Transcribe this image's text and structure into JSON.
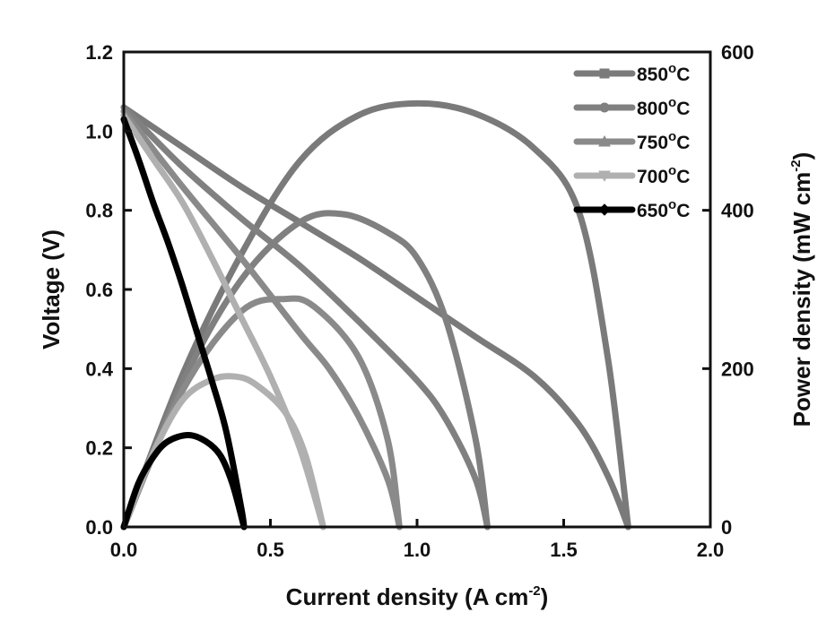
{
  "chart_data": {
    "type": "line",
    "xlabel": {
      "main": "Current density (A cm",
      "sup": "-2",
      "end": ")"
    },
    "ylabel_left": "Voltage (V)",
    "ylabel_right": {
      "main": "Power density (mW cm",
      "sup": "-2",
      "end": ")"
    },
    "xlim": [
      0,
      2.0
    ],
    "ylim_left": [
      0,
      1.2
    ],
    "ylim_right": [
      0,
      600
    ],
    "x_ticks": [
      "0.0",
      "0.5",
      "1.0",
      "1.5",
      "2.0"
    ],
    "y_left_ticks": [
      "0.0",
      "0.2",
      "0.4",
      "0.6",
      "0.8",
      "1.0",
      "1.2"
    ],
    "y_right_ticks": [
      "0",
      "200",
      "400",
      "600"
    ],
    "legend_position": "top-right",
    "grid": false,
    "series": [
      {
        "name": "850°C",
        "label_main": "850",
        "label_sup": "o",
        "label_end": "C",
        "color": "#7a7a7a",
        "marker": "square",
        "voltage": [
          [
            0,
            1.06
          ],
          [
            0.2,
            0.96
          ],
          [
            0.4,
            0.86
          ],
          [
            0.6,
            0.77
          ],
          [
            0.8,
            0.68
          ],
          [
            1.0,
            0.58
          ],
          [
            1.2,
            0.48
          ],
          [
            1.4,
            0.38
          ],
          [
            1.55,
            0.26
          ],
          [
            1.65,
            0.13
          ],
          [
            1.72,
            0.0
          ]
        ],
        "power": [
          [
            0,
            0
          ],
          [
            0.2,
            192
          ],
          [
            0.4,
            344
          ],
          [
            0.6,
            462
          ],
          [
            0.8,
            520
          ],
          [
            1.0,
            535
          ],
          [
            1.2,
            522
          ],
          [
            1.4,
            478
          ],
          [
            1.55,
            400
          ],
          [
            1.65,
            215
          ],
          [
            1.72,
            0
          ]
        ]
      },
      {
        "name": "800°C",
        "label_main": "800",
        "label_sup": "o",
        "label_end": "C",
        "color": "#808080",
        "marker": "circle",
        "voltage": [
          [
            0,
            1.06
          ],
          [
            0.2,
            0.91
          ],
          [
            0.4,
            0.78
          ],
          [
            0.6,
            0.66
          ],
          [
            0.8,
            0.52
          ],
          [
            1.0,
            0.37
          ],
          [
            1.1,
            0.27
          ],
          [
            1.2,
            0.12
          ],
          [
            1.24,
            0.0
          ]
        ],
        "power": [
          [
            0,
            0
          ],
          [
            0.2,
            182
          ],
          [
            0.4,
            312
          ],
          [
            0.6,
            385
          ],
          [
            0.75,
            395
          ],
          [
            0.9,
            372
          ],
          [
            1.0,
            340
          ],
          [
            1.1,
            260
          ],
          [
            1.2,
            110
          ],
          [
            1.24,
            0
          ]
        ]
      },
      {
        "name": "750°C",
        "label_main": "750",
        "label_sup": "o",
        "label_end": "C",
        "color": "#8a8a8a",
        "marker": "triangle-up",
        "voltage": [
          [
            0,
            1.05
          ],
          [
            0.2,
            0.86
          ],
          [
            0.4,
            0.68
          ],
          [
            0.6,
            0.49
          ],
          [
            0.7,
            0.4
          ],
          [
            0.8,
            0.28
          ],
          [
            0.9,
            0.12
          ],
          [
            0.94,
            0.0
          ]
        ],
        "power": [
          [
            0,
            0
          ],
          [
            0.2,
            172
          ],
          [
            0.4,
            272
          ],
          [
            0.55,
            288
          ],
          [
            0.65,
            278
          ],
          [
            0.8,
            215
          ],
          [
            0.9,
            110
          ],
          [
            0.94,
            0
          ]
        ]
      },
      {
        "name": "700°C",
        "label_main": "700",
        "label_sup": "o",
        "label_end": "C",
        "color": "#b0b0b0",
        "marker": "triangle-down",
        "voltage": [
          [
            0,
            1.04
          ],
          [
            0.1,
            0.93
          ],
          [
            0.2,
            0.82
          ],
          [
            0.3,
            0.68
          ],
          [
            0.4,
            0.53
          ],
          [
            0.5,
            0.38
          ],
          [
            0.6,
            0.2
          ],
          [
            0.68,
            0.0
          ]
        ],
        "power": [
          [
            0,
            0
          ],
          [
            0.1,
            93
          ],
          [
            0.2,
            160
          ],
          [
            0.3,
            186
          ],
          [
            0.38,
            190
          ],
          [
            0.45,
            180
          ],
          [
            0.55,
            145
          ],
          [
            0.62,
            90
          ],
          [
            0.68,
            0
          ]
        ]
      },
      {
        "name": "650°C",
        "label_main": "650",
        "label_sup": "o",
        "label_end": "C",
        "color": "#000000",
        "marker": "diamond",
        "voltage": [
          [
            0,
            1.03
          ],
          [
            0.05,
            0.93
          ],
          [
            0.1,
            0.82
          ],
          [
            0.15,
            0.72
          ],
          [
            0.2,
            0.61
          ],
          [
            0.25,
            0.49
          ],
          [
            0.3,
            0.37
          ],
          [
            0.35,
            0.24
          ],
          [
            0.4,
            0.05
          ],
          [
            0.41,
            0.0
          ]
        ],
        "power": [
          [
            0,
            0
          ],
          [
            0.05,
            55
          ],
          [
            0.1,
            88
          ],
          [
            0.15,
            108
          ],
          [
            0.22,
            116
          ],
          [
            0.28,
            108
          ],
          [
            0.33,
            90
          ],
          [
            0.37,
            55
          ],
          [
            0.41,
            0
          ]
        ]
      }
    ]
  }
}
